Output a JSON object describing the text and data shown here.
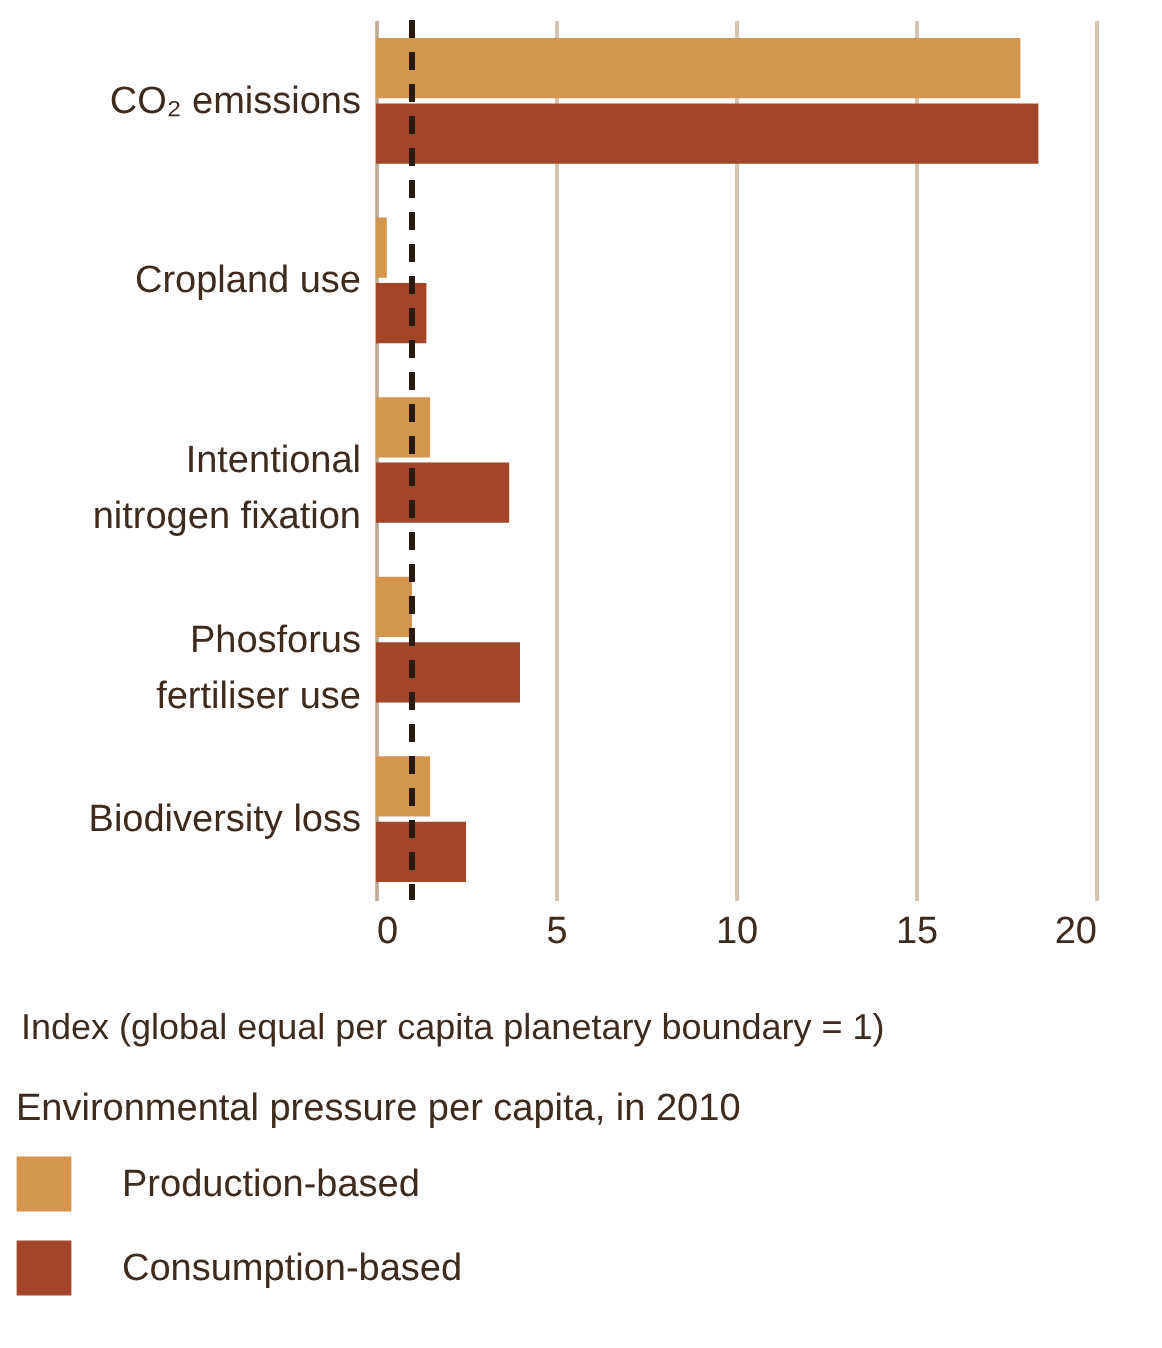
{
  "chart_data": {
    "type": "bar",
    "orientation": "horizontal",
    "categories": [
      "CO₂ emissions",
      "Cropland use",
      "Intentional nitrogen fixation",
      "Phosforus fertiliser use",
      "Biodiversity loss"
    ],
    "series": [
      {
        "name": "Production-based",
        "color": "#d4964e",
        "values": [
          17.9,
          0.3,
          1.5,
          1.0,
          1.5
        ]
      },
      {
        "name": "Consumption-based",
        "color": "#a14628",
        "values": [
          18.4,
          1.4,
          3.7,
          4.0,
          2.5
        ]
      }
    ],
    "xlim": [
      0,
      20
    ],
    "xticks": [
      0,
      5,
      10,
      15,
      20
    ],
    "xlabel": "Index (global equal per capita planetary boundary = 1)",
    "legend_title": "Environmental pressure per capita, in 2010",
    "legend": "bottom left",
    "grid": "x",
    "ref_lines": [
      {
        "axis": "x",
        "value": 1,
        "color": "#2b1a10",
        "line_style": "dashed"
      }
    ]
  }
}
